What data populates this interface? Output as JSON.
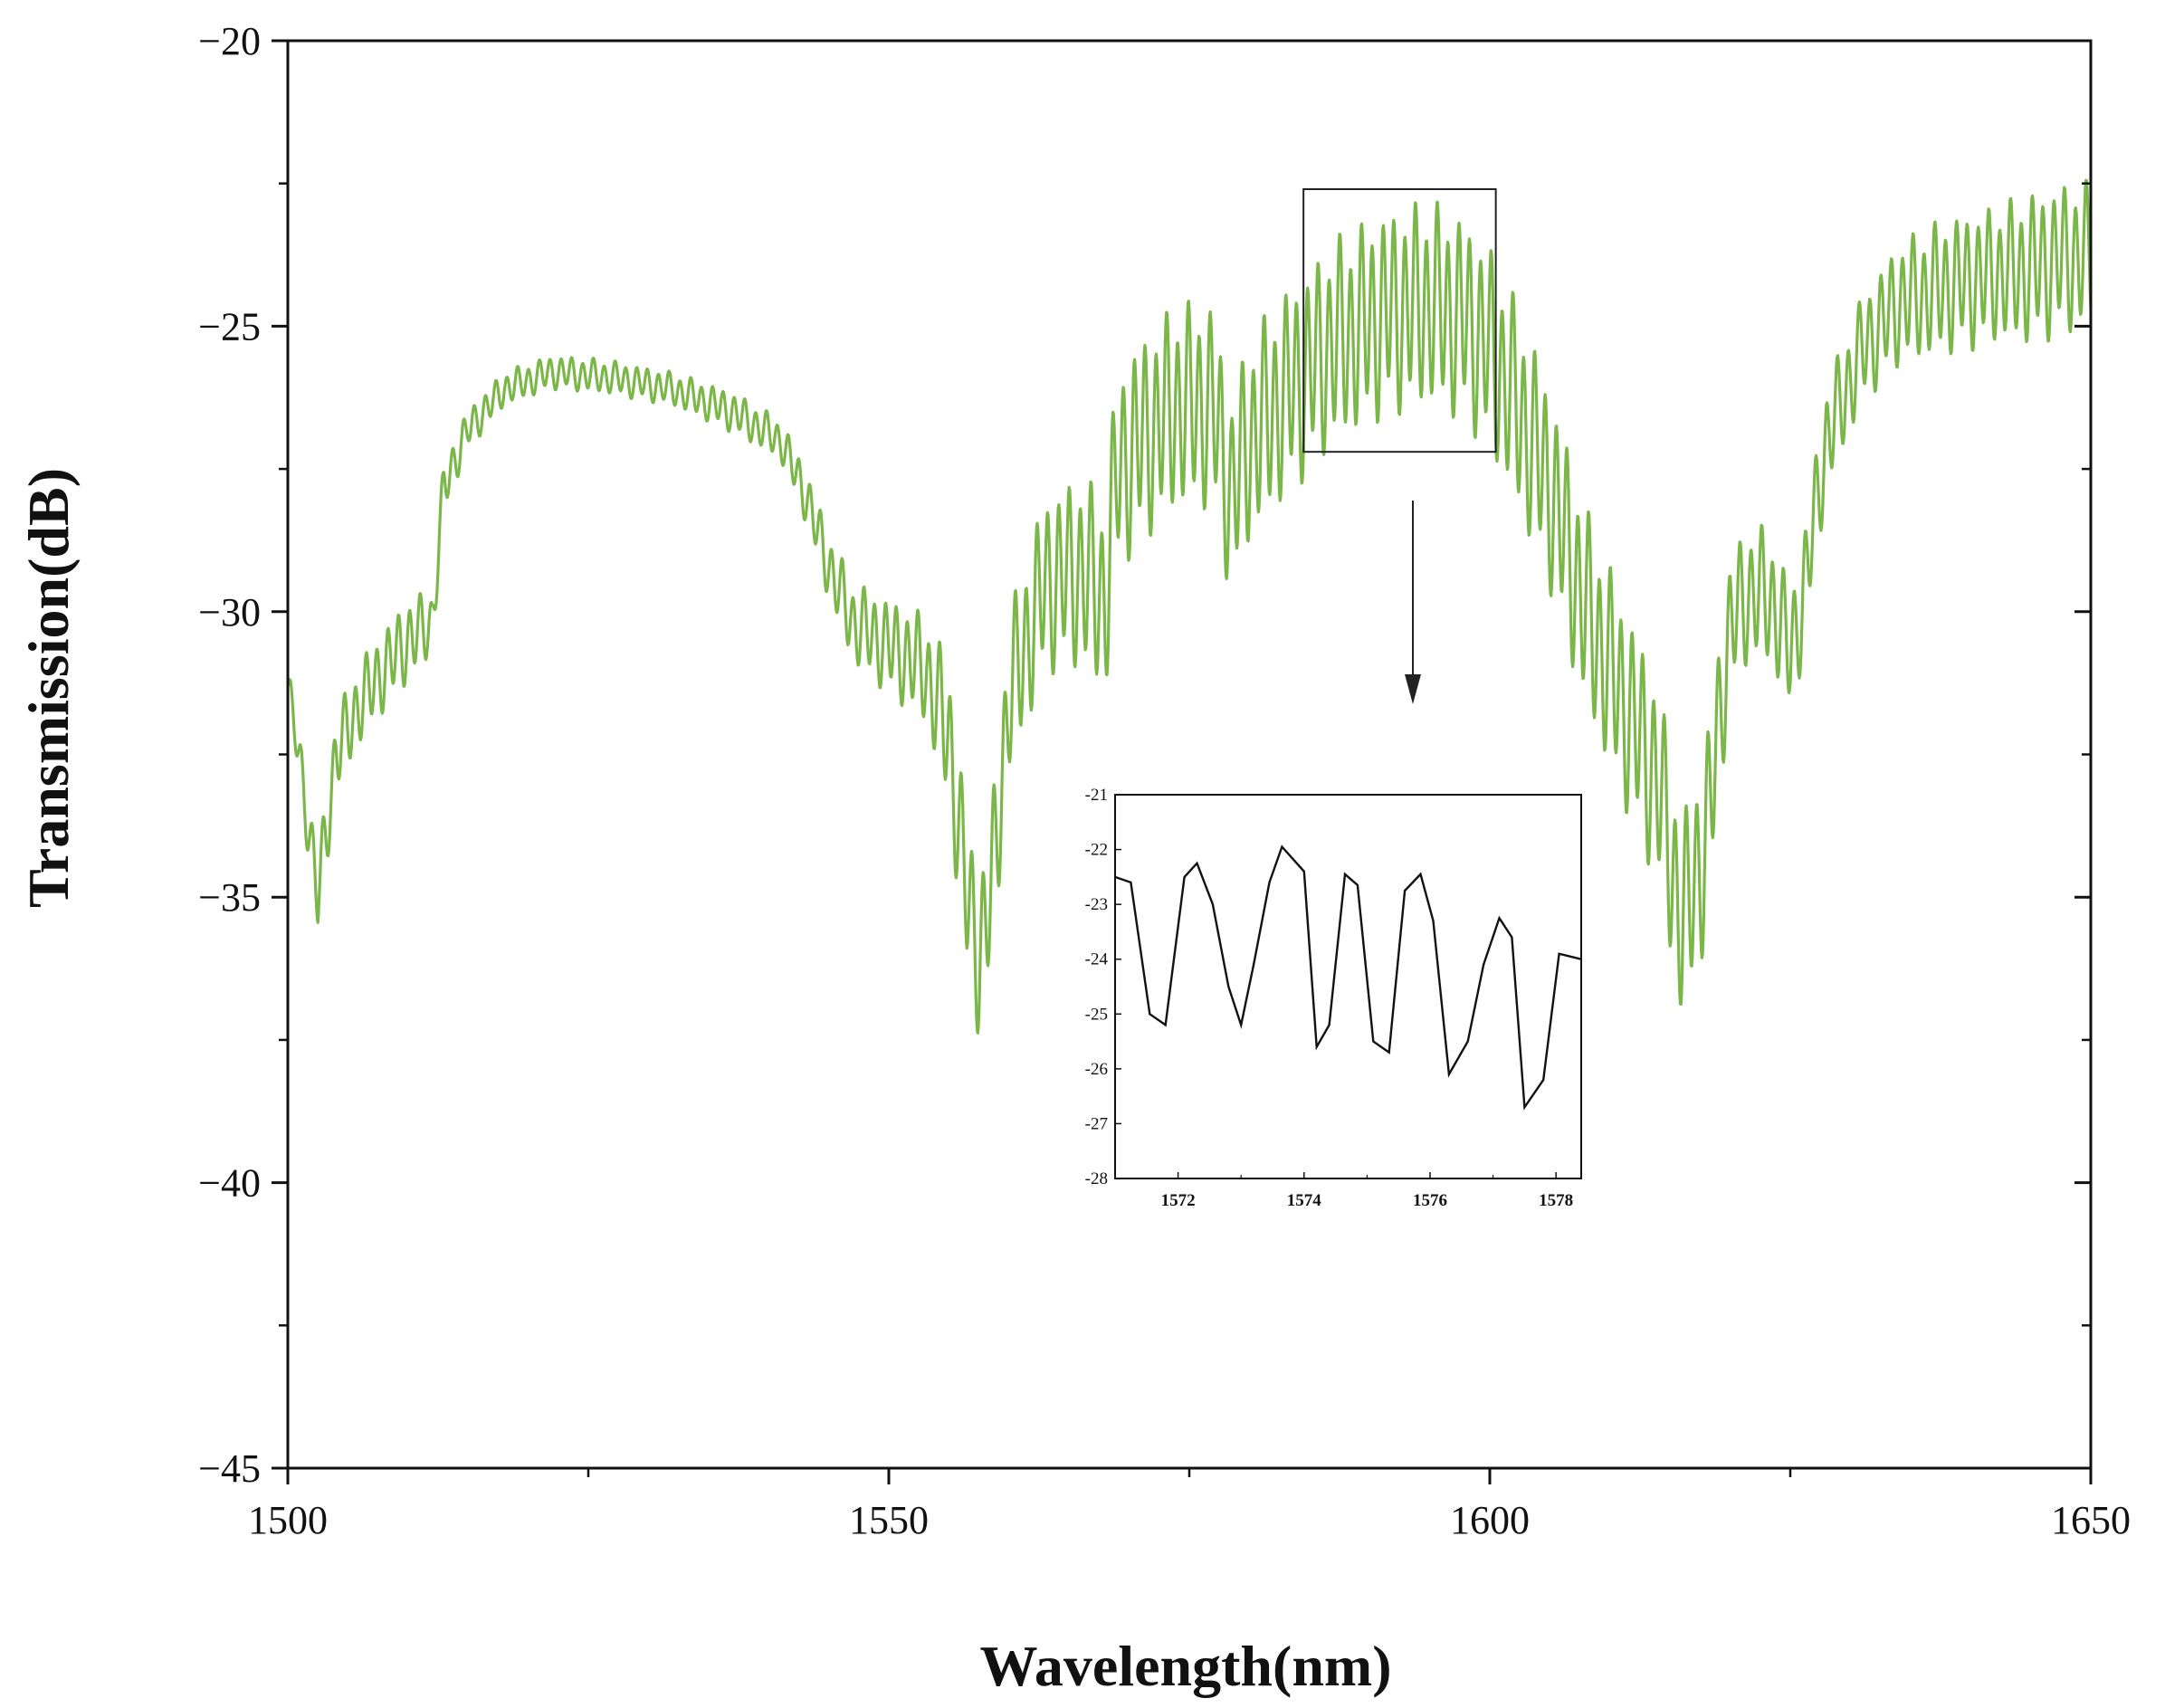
{
  "chart_data": [
    {
      "type": "line",
      "xlabel": "Wavelength(nm)",
      "ylabel": "Transmission(dB)",
      "xlim": [
        1500,
        1650
      ],
      "ylim": [
        -45,
        -20
      ],
      "xticks": [
        "1500",
        "1550",
        "1600",
        "1650"
      ],
      "yticks": [
        "−20",
        "−25",
        "−30",
        "−35",
        "−40",
        "−45"
      ],
      "grid": false,
      "line_color": "#7ab648",
      "highlight_box": {
        "xrange": [
          1584.5,
          1600.5
        ],
        "yrange": [
          -27.2,
          -22.6
        ]
      },
      "envelope": {
        "x": [
          1500,
          1501,
          1502.5,
          1504,
          1506,
          1508,
          1510,
          1512,
          1513,
          1515,
          1518,
          1522,
          1527,
          1532,
          1537,
          1541,
          1543,
          1545,
          1547,
          1550,
          1553,
          1555,
          1556.5,
          1557.5,
          1558.5,
          1560,
          1563,
          1566,
          1568,
          1569,
          1571,
          1574,
          1577,
          1578.5,
          1580,
          1583,
          1587,
          1591,
          1595,
          1598,
          1600,
          1602,
          1605,
          1608,
          1611,
          1614,
          1616,
          1618,
          1620,
          1622,
          1624,
          1625,
          1626,
          1628,
          1631,
          1634,
          1638,
          1642,
          1645,
          1648,
          1650
        ],
        "mid": [
          -31.3,
          -32.6,
          -35.0,
          -32.5,
          -31.6,
          -31.0,
          -30.5,
          -30.2,
          -27.8,
          -26.8,
          -26.1,
          -25.8,
          -25.9,
          -26.1,
          -26.5,
          -27.0,
          -27.9,
          -29.2,
          -30.2,
          -30.6,
          -31.0,
          -32.2,
          -35.0,
          -36.0,
          -35.0,
          -31.5,
          -29.5,
          -29.3,
          -29.8,
          -27.5,
          -27.0,
          -26.4,
          -26.4,
          -28.0,
          -27.0,
          -26.2,
          -25.3,
          -24.8,
          -24.6,
          -24.9,
          -25.4,
          -26.3,
          -27.8,
          -30.0,
          -31.5,
          -33.0,
          -35.5,
          -34.0,
          -30.2,
          -29.6,
          -30.0,
          -30.8,
          -29.8,
          -27.0,
          -25.4,
          -24.6,
          -24.3,
          -24.1,
          -24.0,
          -23.8,
          -23.8
        ],
        "amp": [
          0.3,
          0.4,
          0.6,
          0.6,
          0.6,
          0.6,
          0.6,
          0.5,
          0.4,
          0.3,
          0.25,
          0.25,
          0.25,
          0.25,
          0.3,
          0.3,
          0.4,
          0.5,
          0.6,
          0.7,
          0.8,
          1.1,
          1.2,
          1.2,
          1.2,
          1.2,
          1.3,
          1.4,
          1.5,
          1.5,
          1.5,
          1.5,
          1.5,
          1.5,
          1.5,
          1.5,
          1.5,
          1.5,
          1.5,
          1.5,
          1.5,
          1.5,
          1.5,
          1.5,
          1.5,
          1.5,
          1.5,
          1.5,
          1.0,
          1.0,
          1.0,
          0.9,
          0.9,
          0.8,
          0.8,
          0.9,
          1.0,
          1.0,
          1.1,
          1.1,
          1.1
        ],
        "fringe_period_nm": 0.9
      }
    },
    {
      "type": "line",
      "inset": true,
      "xlim": [
        1571,
        1578.4
      ],
      "ylim": [
        -28,
        -21
      ],
      "xticks": [
        "1572",
        "1574",
        "1576",
        "1578"
      ],
      "yticks": [
        "-21",
        "-22",
        "-23",
        "-24",
        "-25",
        "-26",
        "-27",
        "-28"
      ],
      "line_color": "#111111",
      "x": [
        1571.0,
        1571.25,
        1571.55,
        1571.8,
        1572.1,
        1572.3,
        1572.55,
        1572.8,
        1573.0,
        1573.2,
        1573.45,
        1573.65,
        1574.0,
        1574.2,
        1574.4,
        1574.65,
        1574.85,
        1575.1,
        1575.35,
        1575.6,
        1575.85,
        1576.05,
        1576.3,
        1576.6,
        1576.85,
        1577.1,
        1577.3,
        1577.5,
        1577.8,
        1578.05,
        1578.4
      ],
      "y": [
        -22.5,
        -22.6,
        -25.0,
        -25.2,
        -22.5,
        -22.25,
        -23.0,
        -24.5,
        -25.2,
        -24.1,
        -22.6,
        -21.95,
        -22.4,
        -25.6,
        -25.2,
        -22.45,
        -22.65,
        -25.5,
        -25.7,
        -22.75,
        -22.45,
        -23.3,
        -26.1,
        -25.5,
        -24.1,
        -23.25,
        -23.6,
        -26.7,
        -26.2,
        -23.9,
        -24.0
      ]
    }
  ]
}
